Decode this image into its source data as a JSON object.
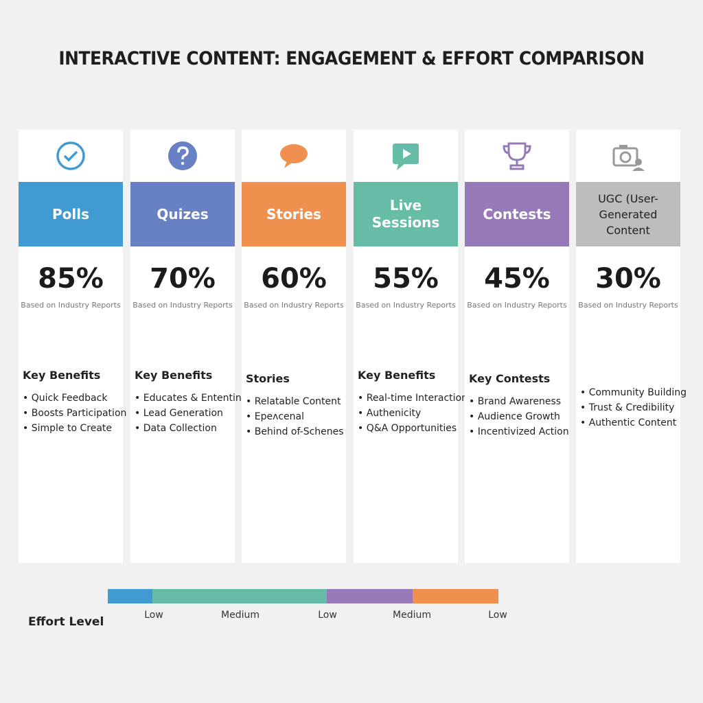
{
  "title": "INTERACTIVE CONTENT: ENGAGEMENT & EFFORT COMPARISON",
  "cards": [
    {
      "name": "Polls",
      "color": "#3f9bd2",
      "stat": "85%",
      "source": "Based on Industry Reports",
      "heading": "Key Benefits",
      "bullets": [
        "Quick Feedback",
        "Boosts Participation",
        "Simple to Create"
      ]
    },
    {
      "name": "Quizes",
      "color": "#6880c4",
      "stat": "70%",
      "source": "Based on Industry Reports",
      "heading": "Key Benefits",
      "bullets": [
        "Educates & Ententins",
        "Lead Generation",
        "Data Collection"
      ]
    },
    {
      "name": "Stories",
      "color": "#f0904e",
      "stat": "60%",
      "source": "Based on Industry Reports",
      "heading": "Stories",
      "bullets": [
        "Relatable Content",
        "Epeʌcenal",
        "Behind of-Schenes"
      ]
    },
    {
      "name": "Live Sessions",
      "color": "#66bca6",
      "stat": "55%",
      "source": "Based on Industry Reports",
      "heading": "Key Benefits",
      "bullets": [
        "Real-time Interaction",
        "Authenicity",
        "Q&A Opportunities"
      ]
    },
    {
      "name": "Contests",
      "color": "#9679b8",
      "stat": "45%",
      "source": "Based on Industry Reports",
      "heading": "Key Contests",
      "bullets": [
        "Brand Awareness",
        "Audience Growth",
        "Incentivized Action"
      ]
    },
    {
      "name": "UGC (User-Generated Content",
      "color": "#bcbcbc",
      "stat": "30%",
      "source": "Based on Industry Reports",
      "bullets": [
        "Community Building",
        "Trust & Credibility",
        "Authentic Content"
      ]
    }
  ],
  "effort": {
    "label": "Effort Level",
    "segments": [
      {
        "label": "Low",
        "color": "#3f9bd2"
      },
      {
        "label": "Medium",
        "color": "#66bca6"
      },
      {
        "label": "Low",
        "color": "#9679b8"
      },
      {
        "label": "Medium",
        "color": "#f0904e"
      },
      {
        "label": "Low",
        "color": "#f0904e"
      }
    ]
  }
}
